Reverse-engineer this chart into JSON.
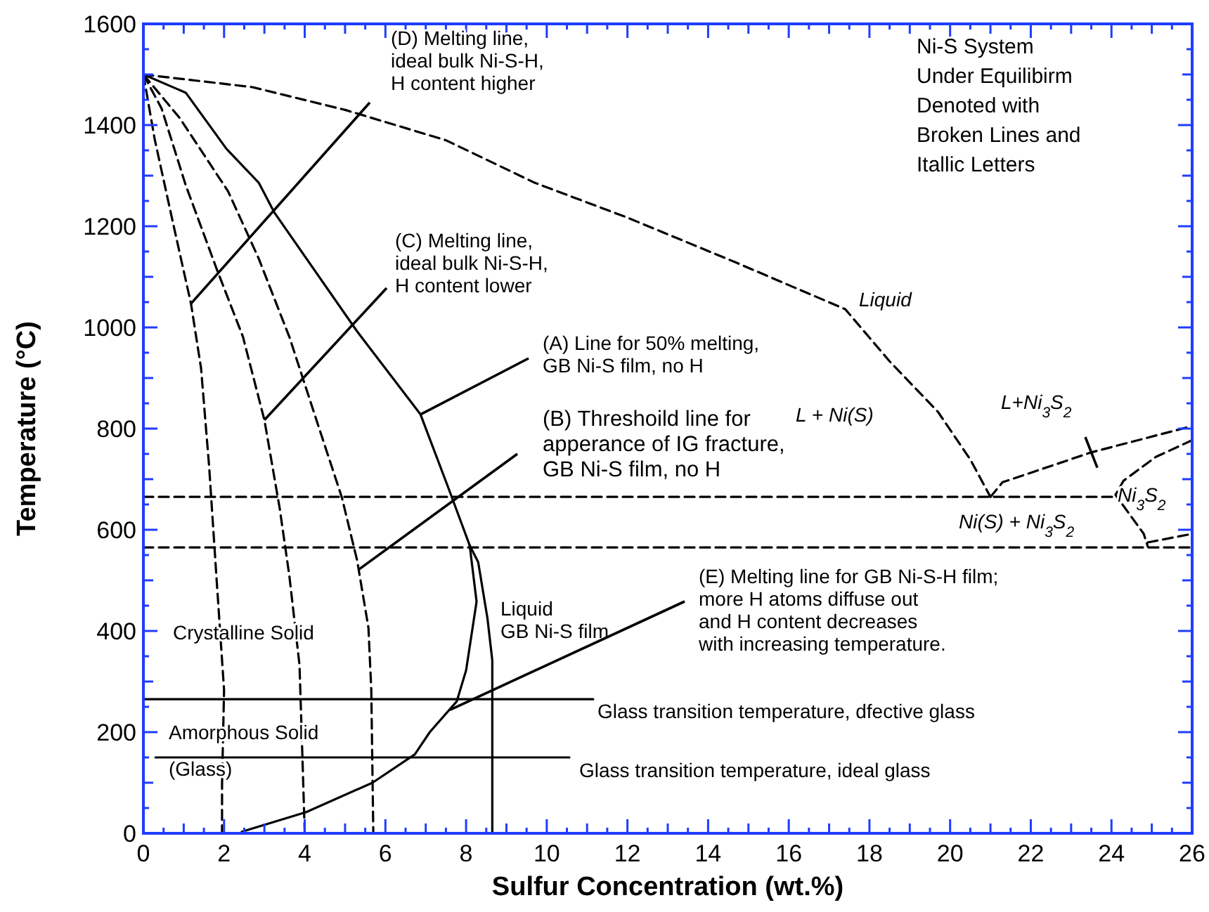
{
  "chart_data": {
    "type": "line",
    "xlabel": "Sulfur Concentration (wt.%)",
    "ylabel": "Temperature (°C)",
    "xlim": [
      0,
      26
    ],
    "ylim": [
      0,
      1600
    ],
    "xticks": [
      0,
      {
        "value": 0.5,
        "label": null
      },
      {
        "value": 1,
        "label": null
      },
      {
        "value": 1.5,
        "label": null
      },
      2,
      {
        "value": 2.5,
        "label": null
      },
      {
        "value": 3,
        "label": null
      },
      {
        "value": 3.5,
        "label": null
      },
      4,
      {
        "value": 4.5,
        "label": null
      },
      {
        "value": 5,
        "label": null
      },
      {
        "value": 5.5,
        "label": null
      },
      6,
      {
        "value": 6.5,
        "label": null
      },
      {
        "value": 7,
        "label": null
      },
      {
        "value": 7.5,
        "label": null
      },
      8,
      {
        "value": 8.5,
        "label": null
      },
      {
        "value": 9,
        "label": null
      },
      {
        "value": 9.5,
        "label": null
      },
      10,
      {
        "value": 10.5,
        "label": null
      },
      {
        "value": 11,
        "label": null
      },
      {
        "value": 11.5,
        "label": null
      },
      12,
      {
        "value": 12.5,
        "label": null
      },
      {
        "value": 13,
        "label": null
      },
      {
        "value": 13.5,
        "label": null
      },
      14,
      {
        "value": 14.5,
        "label": null
      },
      {
        "value": 15,
        "label": null
      },
      {
        "value": 15.5,
        "label": null
      },
      16,
      {
        "value": 16.5,
        "label": null
      },
      {
        "value": 17,
        "label": null
      },
      {
        "value": 17.5,
        "label": null
      },
      18,
      {
        "value": 18.5,
        "label": null
      },
      {
        "value": 19,
        "label": null
      },
      {
        "value": 19.5,
        "label": null
      },
      20,
      {
        "value": 20.5,
        "label": null
      },
      {
        "value": 21,
        "label": null
      },
      {
        "value": 21.5,
        "label": null
      },
      22,
      {
        "value": 22.5,
        "label": null
      },
      {
        "value": 23,
        "label": null
      },
      {
        "value": 23.5,
        "label": null
      },
      24,
      {
        "value": 24.5,
        "label": null
      },
      {
        "value": 25,
        "label": null
      },
      {
        "value": 25.5,
        "label": null
      },
      26
    ],
    "yticks": [
      0,
      {
        "value": 50,
        "label": null
      },
      {
        "value": 100,
        "label": null
      },
      {
        "value": 150,
        "label": null
      },
      200,
      {
        "value": 250,
        "label": null
      },
      {
        "value": 300,
        "label": null
      },
      {
        "value": 350,
        "label": null
      },
      400,
      {
        "value": 450,
        "label": null
      },
      {
        "value": 500,
        "label": null
      },
      {
        "value": 550,
        "label": null
      },
      600,
      {
        "value": 650,
        "label": null
      },
      {
        "value": 700,
        "label": null
      },
      {
        "value": 750,
        "label": null
      },
      800,
      {
        "value": 850,
        "label": null
      },
      {
        "value": 900,
        "label": null
      },
      {
        "value": 950,
        "label": null
      },
      1000,
      {
        "value": 1050,
        "label": null
      },
      {
        "value": 1100,
        "label": null
      },
      {
        "value": 1150,
        "label": null
      },
      1200,
      {
        "value": 1250,
        "label": null
      },
      {
        "value": 1300,
        "label": null
      },
      {
        "value": 1350,
        "label": null
      },
      1400,
      {
        "value": 1450,
        "label": null
      },
      {
        "value": 1500,
        "label": null
      },
      {
        "value": 1550,
        "label": null
      },
      1600
    ],
    "grid": false,
    "marker": "none",
    "series": [
      {
        "color": "#000000",
        "line_style": "solid",
        "x": [
          0,
          1.05,
          2.06,
          2.86,
          3.24,
          5.3,
          6.87,
          7.56,
          8.09,
          8.3,
          8.53,
          8.65,
          8.65
        ],
        "values": [
          1500,
          1464,
          1353,
          1286,
          1228,
          992,
          828,
          683,
          569,
          536,
          425,
          342,
          0
        ]
      },
      {
        "color": "#000000",
        "line_style": "solid",
        "x": [
          8.09,
          8.26,
          8.0,
          7.77,
          7.1,
          6.73,
          5.68,
          4.04,
          2.44
        ],
        "values": [
          569,
          458,
          322,
          261,
          200,
          156,
          100,
          42,
          3
        ]
      },
      {
        "color": "#000000",
        "line_style": "dashed",
        "x": [
          0,
          0.28,
          0.73,
          1.18,
          1.43,
          1.63,
          1.81,
          2.0,
          1.95,
          1.95
        ],
        "values": [
          1500,
          1372,
          1208,
          1047,
          919,
          725,
          508,
          283,
          97,
          0
        ]
      },
      {
        "color": "#000000",
        "line_style": "dashed",
        "x": [
          0,
          0.45,
          1.05,
          1.81,
          2.47,
          3.0,
          3.38,
          3.62,
          3.87,
          3.94,
          4.0
        ],
        "values": [
          1500,
          1433,
          1281,
          1117,
          981,
          817,
          642,
          508,
          333,
          158,
          0
        ]
      },
      {
        "color": "#000000",
        "line_style": "dashed",
        "x": [
          0,
          0.9,
          2.1,
          2.86,
          3.62,
          4.29,
          4.92,
          5.3,
          5.58,
          5.65,
          5.7
        ],
        "values": [
          1500,
          1414,
          1269,
          1136,
          981,
          817,
          664,
          539,
          406,
          283,
          0
        ]
      },
      {
        "color": "#000000",
        "line_style": "dashed",
        "x": [
          0,
          2.7,
          5,
          7.5,
          9.7,
          12,
          14.7,
          17.4,
          18.5,
          19.7,
          20.5,
          21
        ],
        "values": [
          1500,
          1475,
          1430,
          1370,
          1286,
          1217,
          1128,
          1036,
          933,
          833,
          739,
          665
        ]
      },
      {
        "color": "#000000",
        "line_style": "dashed",
        "x": [
          21,
          21.3,
          23.5,
          26
        ],
        "values": [
          665,
          694,
          753,
          805
        ]
      },
      {
        "color": "#000000",
        "line_style": "dashed",
        "x": [
          26,
          25.1,
          24.3,
          24.1,
          24.8,
          24.9
        ],
        "values": [
          777,
          744,
          697,
          669,
          592,
          567
        ]
      },
      {
        "color": "#000000",
        "line_style": "dashed",
        "x": [
          24.9,
          26
        ],
        "values": [
          575,
          592
        ]
      },
      {
        "color": "#000000",
        "line_style": "dashed",
        "x": [
          0,
          24.1
        ],
        "values": [
          665,
          665
        ]
      },
      {
        "color": "#000000",
        "line_style": "dashed",
        "x": [
          0,
          26
        ],
        "values": [
          565,
          565
        ]
      },
      {
        "color": "#000000",
        "line_style": "solid",
        "x": [
          0,
          11.15
        ],
        "values": [
          265,
          265
        ]
      },
      {
        "color": "#000000",
        "line_style": "solid",
        "x": [
          0.3,
          10.56
        ],
        "values": [
          150,
          150
        ]
      }
    ],
    "annotations": [
      {
        "text": "(D)  Melting line,\nideal bulk Ni-S-H,\nH content higher",
        "x": 1.18,
        "y": 1047
      },
      {
        "text": "(C)  Melting line,\nideal bulk Ni-S-H,\nH content lower",
        "x": 3.0,
        "y": 817
      },
      {
        "text": "(A)   Line for 50% melting,\nGB Ni-S film, no H",
        "x": 6.87,
        "y": 828
      },
      {
        "text": "(B)  Threshoild line for\napperance of IG fracture,\nGB Ni-S film, no H",
        "x": 5.35,
        "y": 522
      },
      "Liquid\nGB Ni-S film",
      {
        "text": "(E)  Melting line for GB Ni-S-H film;\nmore H atoms diffuse out\nand H content decreases\nwith increasing temperature.",
        "x": 7.6,
        "y": 244
      },
      "Crystalline Solid",
      "Amorphous Solid\n(Glass)",
      "Glass transition temperature, dfective glass",
      "Glass transition temperature, ideal glass",
      "Ni-S System\nUnder  Equilibirm\nDenoted with\nBroken Lines and\nItallic Letters",
      "Liquid",
      "L + Ni(S)",
      {
        "text": "L+Ni$_{3}$S$_{2}$",
        "x": 23.5,
        "y": 753
      },
      "Ni(S) + Ni$_{3}$S$_{2}$",
      "Ni$_{3}$S$_{2}$"
    ]
  }
}
